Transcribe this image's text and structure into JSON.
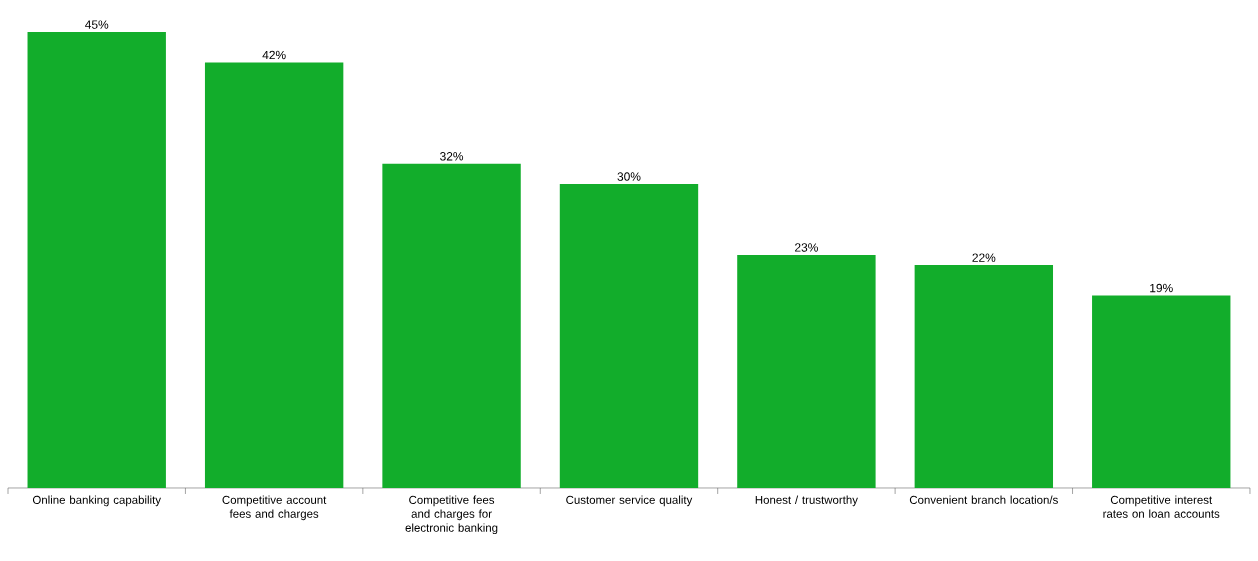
{
  "chart_data": {
    "type": "bar",
    "categories": [
      "Online banking capability",
      "Competitive account fees and charges",
      "Competitive fees and charges for electronic banking",
      "Customer service quality",
      "Honest / trustworthy",
      "Convenient branch location/s",
      "Competitive interest rates on loan accounts"
    ],
    "values": [
      45,
      42,
      32,
      30,
      23,
      22,
      19
    ],
    "value_labels": [
      "45%",
      "42%",
      "32%",
      "30%",
      "23%",
      "22%",
      "19%"
    ],
    "color": "#12ad2b"
  }
}
